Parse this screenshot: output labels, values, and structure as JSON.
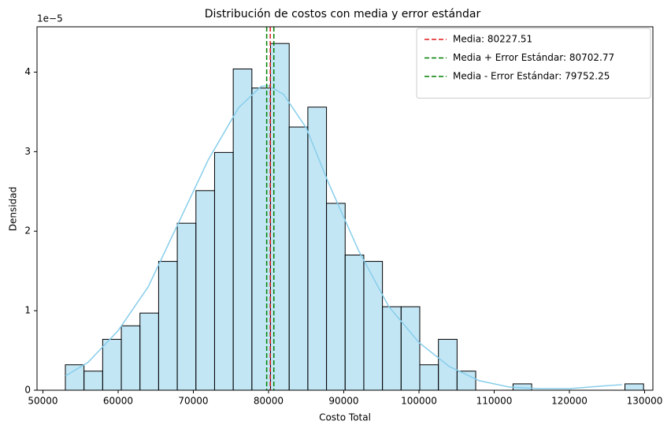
{
  "chart_data": {
    "type": "histogram",
    "title": "Distribución de costos con media y error estándar",
    "x_label": "Costo Total",
    "y_label": "Densidad",
    "y_offset_label": "1e−5",
    "bins": [
      52984,
      55464,
      57944,
      60424,
      62904,
      65384,
      67864,
      70344,
      72824,
      75304,
      77784,
      80264,
      82744,
      85224,
      87704,
      90184,
      92664,
      95144,
      97624,
      100104,
      102584,
      105064,
      107544,
      110024,
      112504,
      114984,
      117464,
      119944,
      122424,
      124904,
      127384,
      129864
    ],
    "values": [
      0.32,
      0.24,
      0.64,
      0.81,
      0.97,
      1.62,
      2.1,
      2.51,
      2.99,
      4.04,
      3.8,
      4.36,
      3.31,
      3.56,
      2.35,
      1.7,
      1.62,
      1.05,
      1.05,
      0.32,
      0.64,
      0.24,
      0,
      0,
      0.08,
      0,
      0,
      0,
      0,
      0,
      0.08
    ],
    "color": "#87ceeb",
    "kde": {
      "color": "#87ceeb",
      "x": [
        53000,
        56000,
        60000,
        64000,
        68000,
        72000,
        76000,
        79000,
        80000,
        82000,
        85000,
        88000,
        92000,
        96000,
        100000,
        104000,
        108000,
        112000,
        116000,
        120000,
        124000,
        127000
      ],
      "y": [
        0.18,
        0.35,
        0.75,
        1.3,
        2.1,
        2.9,
        3.55,
        3.82,
        3.83,
        3.72,
        3.3,
        2.6,
        1.75,
        1.05,
        0.6,
        0.3,
        0.12,
        0.04,
        0.02,
        0.02,
        0.05,
        0.07
      ]
    },
    "vlines": [
      {
        "name": "Media: 80227.51",
        "value": 80227.51,
        "color": "#e41a1c"
      },
      {
        "name": "Media + Error Estándar: 80702.77",
        "value": 80702.77,
        "color": "#008000"
      },
      {
        "name": "Media - Error Estándar: 79752.25",
        "value": 79752.25,
        "color": "#008000"
      }
    ],
    "xlim": [
      49215,
      131100
    ],
    "ylim": [
      0,
      4.57
    ],
    "xticks": [
      50000,
      60000,
      70000,
      80000,
      90000,
      100000,
      110000,
      120000,
      130000
    ],
    "yticks": [
      0,
      1,
      2,
      3,
      4
    ],
    "legend": "upper-right"
  }
}
